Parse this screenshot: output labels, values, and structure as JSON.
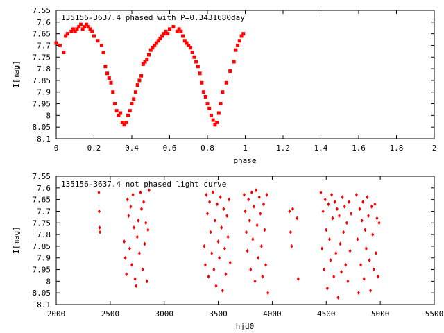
{
  "colors": {
    "points": "#ff0000",
    "axes": "#000000",
    "background": "#ffffff"
  },
  "chart_data": [
    {
      "type": "scatter",
      "title": "135156-3637.4 phased with P=0.3431680day",
      "xlabel": "phase",
      "ylabel": "I[mag]",
      "xlim": [
        0,
        2
      ],
      "ylim": [
        8.1,
        7.55
      ],
      "y_inverted": true,
      "grid": false,
      "marker": "filled-square",
      "xticks": [
        "0",
        "0.2",
        "0.4",
        "0.6",
        "0.8",
        "1",
        "1.2",
        "1.4",
        "1.6",
        "1.8",
        "2"
      ],
      "yticks": [
        "7.55",
        "7.6",
        "7.65",
        "7.7",
        "7.75",
        "7.8",
        "7.85",
        "7.9",
        "7.95",
        "8",
        "8.05",
        "8.1"
      ],
      "series": [
        {
          "x": [
            0.0,
            0.02,
            0.04,
            0.05,
            0.06,
            0.08,
            0.09,
            0.1,
            0.11,
            0.12,
            0.13,
            0.14,
            0.15,
            0.16,
            0.17,
            0.18,
            0.19,
            0.2,
            0.22,
            0.24,
            0.25,
            0.26,
            0.27,
            0.28,
            0.29,
            0.3,
            0.31,
            0.32,
            0.33,
            0.34,
            0.35,
            0.36,
            0.37,
            0.38,
            0.39,
            0.4,
            0.41,
            0.42,
            0.43,
            0.44,
            0.45,
            0.46,
            0.47,
            0.48,
            0.49,
            0.5,
            0.51,
            0.52,
            0.53,
            0.54,
            0.55,
            0.56,
            0.57,
            0.58,
            0.59,
            0.6,
            0.62,
            0.64,
            0.65,
            0.66,
            0.67,
            0.68,
            0.69,
            0.7,
            0.71,
            0.72,
            0.73,
            0.74,
            0.75,
            0.76,
            0.77,
            0.78,
            0.79,
            0.8,
            0.81,
            0.82,
            0.83,
            0.84,
            0.85,
            0.86,
            0.87,
            0.88,
            0.9,
            0.92,
            0.94,
            0.95,
            0.96,
            0.97,
            0.98,
            0.99
          ],
          "y": [
            7.69,
            7.7,
            7.73,
            7.66,
            7.65,
            7.64,
            7.63,
            7.64,
            7.63,
            7.62,
            7.61,
            7.63,
            7.62,
            7.61,
            7.62,
            7.63,
            7.64,
            7.66,
            7.68,
            7.7,
            7.73,
            7.79,
            7.82,
            7.84,
            7.86,
            7.9,
            7.95,
            7.98,
            8.0,
            7.99,
            8.03,
            8.04,
            8.03,
            8.0,
            7.98,
            7.95,
            7.93,
            7.9,
            7.87,
            7.85,
            7.83,
            7.78,
            7.77,
            7.76,
            7.74,
            7.72,
            7.71,
            7.7,
            7.69,
            7.68,
            7.67,
            7.66,
            7.65,
            7.64,
            7.65,
            7.63,
            7.62,
            7.64,
            7.63,
            7.64,
            7.66,
            7.68,
            7.69,
            7.7,
            7.71,
            7.73,
            7.75,
            7.77,
            7.79,
            7.82,
            7.86,
            7.9,
            7.92,
            7.95,
            7.97,
            8.0,
            8.02,
            8.04,
            8.03,
            7.99,
            7.95,
            7.9,
            7.86,
            7.81,
            7.77,
            7.72,
            7.7,
            7.68,
            7.66,
            7.65
          ]
        }
      ]
    },
    {
      "type": "scatter",
      "title": "135156-3637.4 not phased light curve",
      "xlabel": "hjd0",
      "ylabel": "I[mag]",
      "xlim": [
        2000,
        5500
      ],
      "ylim": [
        8.1,
        7.55
      ],
      "y_inverted": true,
      "grid": false,
      "marker": "diamond",
      "xticks": [
        "2000",
        "2500",
        "3000",
        "3500",
        "4000",
        "4500",
        "5000",
        "5500"
      ],
      "yticks": [
        "7.55",
        "7.6",
        "7.65",
        "7.7",
        "7.75",
        "7.8",
        "7.85",
        "7.9",
        "7.95",
        "8",
        "8.05",
        "8.1"
      ],
      "series": [
        {
          "x": [
            2395,
            2398,
            2402,
            2405,
            2630,
            2640,
            2650,
            2660,
            2670,
            2680,
            2690,
            2700,
            2710,
            2720,
            2730,
            2740,
            2750,
            2760,
            2770,
            2780,
            2790,
            2800,
            2810,
            2820,
            2830,
            2840,
            2850,
            2860,
            3370,
            3380,
            3390,
            3400,
            3410,
            3420,
            3430,
            3440,
            3450,
            3460,
            3470,
            3480,
            3490,
            3500,
            3510,
            3520,
            3530,
            3540,
            3550,
            3560,
            3570,
            3580,
            3590,
            3600,
            3610,
            3740,
            3750,
            3760,
            3770,
            3780,
            3790,
            3800,
            3810,
            3820,
            3830,
            3840,
            3850,
            3860,
            3870,
            3880,
            3890,
            3900,
            3910,
            3920,
            3930,
            3940,
            3950,
            3960,
            4160,
            4170,
            4180,
            4190,
            4230,
            4240,
            4450,
            4460,
            4470,
            4480,
            4490,
            4500,
            4510,
            4520,
            4530,
            4540,
            4550,
            4560,
            4570,
            4580,
            4590,
            4600,
            4610,
            4620,
            4630,
            4640,
            4650,
            4660,
            4670,
            4680,
            4690,
            4700,
            4710,
            4720,
            4730,
            4780,
            4790,
            4800,
            4810,
            4820,
            4830,
            4840,
            4850,
            4860,
            4870,
            4880,
            4890,
            4900,
            4910,
            4920,
            4930,
            4940,
            4950,
            4960,
            4970,
            4980,
            4990
          ],
          "y": [
            7.62,
            7.7,
            7.77,
            7.79,
            7.83,
            7.9,
            7.97,
            7.65,
            7.72,
            7.86,
            7.68,
            7.93,
            7.63,
            7.77,
            7.99,
            8.02,
            7.81,
            7.74,
            7.88,
            7.62,
            7.69,
            7.95,
            7.66,
            7.84,
            7.75,
            8.0,
            7.78,
            7.61,
            7.85,
            7.93,
            7.63,
            7.71,
            7.98,
            7.66,
            7.79,
            7.88,
            7.62,
            7.95,
            7.74,
            8.02,
            7.67,
            7.83,
            7.9,
            7.64,
            7.77,
            8.04,
            7.69,
            7.86,
            7.97,
            7.72,
            7.81,
            7.65,
            7.92,
            7.63,
            7.7,
            7.79,
            7.87,
            7.65,
            7.74,
            7.95,
            7.62,
            7.82,
            7.68,
            8.0,
            7.61,
            7.76,
            7.9,
            7.64,
            7.71,
            7.85,
            7.98,
            7.67,
            7.78,
            7.93,
            7.63,
            8.05,
            7.7,
            7.79,
            7.85,
            7.69,
            7.73,
            7.99,
            7.62,
            7.86,
            7.7,
            7.95,
            7.65,
            7.78,
            8.03,
            7.67,
            7.82,
            7.91,
            7.63,
            7.73,
            7.98,
            7.66,
            7.88,
            7.69,
            8.07,
            7.72,
            7.84,
            7.96,
            7.64,
            7.79,
            7.68,
            7.93,
            7.75,
            8.0,
            7.66,
            7.87,
            7.71,
            7.63,
            7.82,
            8.05,
            7.69,
            7.93,
            7.74,
            7.66,
            7.99,
            7.78,
            7.86,
            7.64,
            7.72,
            7.91,
            8.04,
            7.68,
            7.8,
            7.95,
            7.67,
            7.88,
            7.73,
            7.98,
            7.75
          ]
        }
      ]
    }
  ]
}
